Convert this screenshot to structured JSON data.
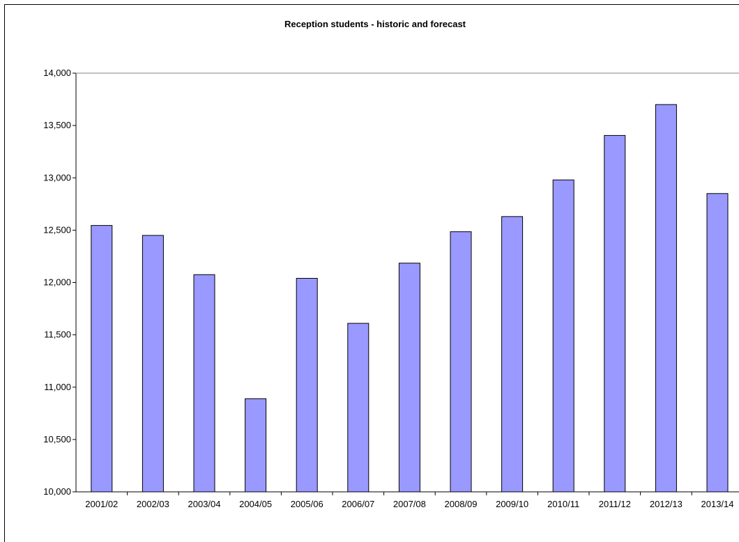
{
  "chart_data": {
    "type": "bar",
    "title": "Reception students - historic and forecast",
    "xlabel": "",
    "ylabel": "",
    "categories": [
      "2001/02",
      "2002/03",
      "2003/04",
      "2004/05",
      "2005/06",
      "2006/07",
      "2007/08",
      "2008/09",
      "2009/10",
      "2010/11",
      "2011/12",
      "2012/13",
      "2013/14"
    ],
    "values": [
      12545,
      12450,
      12075,
      10890,
      12040,
      11610,
      12185,
      12485,
      12630,
      12980,
      13405,
      13700,
      12850
    ],
    "ylim": [
      10000,
      14000
    ],
    "yticks": [
      "10,000",
      "10,500",
      "11,000",
      "11,500",
      "12,000",
      "12,500",
      "13,000",
      "13,500",
      "14,000"
    ],
    "bar_color": "#9999ff",
    "grid": false,
    "legend": "none"
  }
}
